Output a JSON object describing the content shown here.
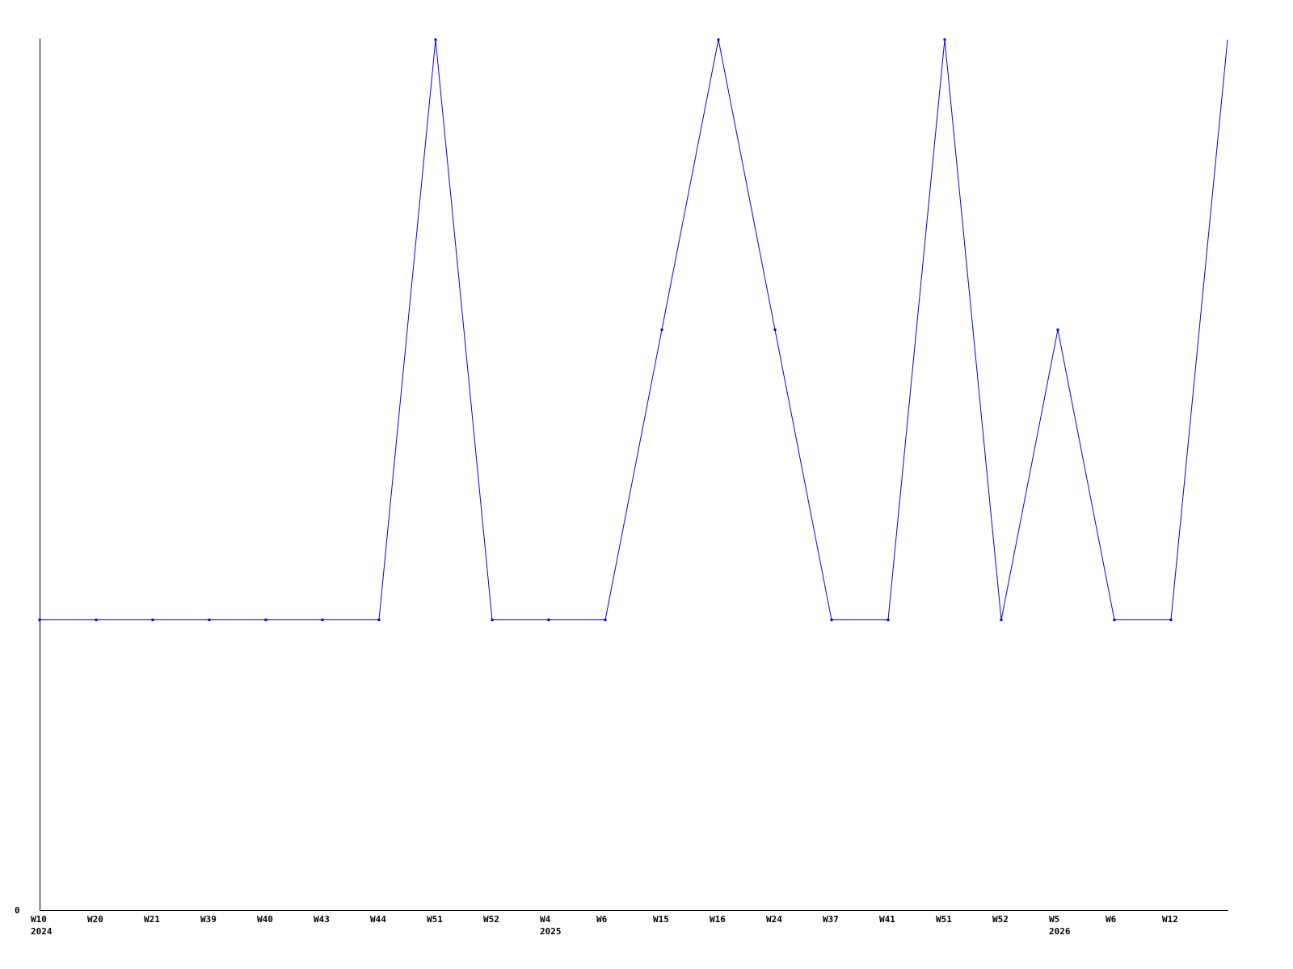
{
  "chart_data": {
    "type": "line",
    "title": "",
    "xlabel": "",
    "ylabel": "",
    "ylim": [
      0,
      3
    ],
    "y_tick_labels": [
      "0"
    ],
    "grid": false,
    "line_color": "#0000ff",
    "axis_color": "#000000",
    "categories": [
      "W10",
      "W20",
      "W21",
      "W39",
      "W40",
      "W43",
      "W44",
      "W51",
      "W52",
      "W4",
      "W6",
      "W15",
      "W16",
      "W24",
      "W37",
      "W41",
      "W51",
      "W52",
      "W5",
      "W6",
      "W12",
      ""
    ],
    "year_labels": [
      {
        "category_index": 0,
        "label": "2024"
      },
      {
        "category_index": 9,
        "label": "2025"
      },
      {
        "category_index": 18,
        "label": "2026"
      }
    ],
    "series": [
      {
        "values": [
          1,
          1,
          1,
          1,
          1,
          1,
          1,
          3,
          1,
          1,
          1,
          2,
          3,
          2,
          1,
          1,
          3,
          1,
          2,
          1,
          1,
          3
        ]
      }
    ]
  }
}
